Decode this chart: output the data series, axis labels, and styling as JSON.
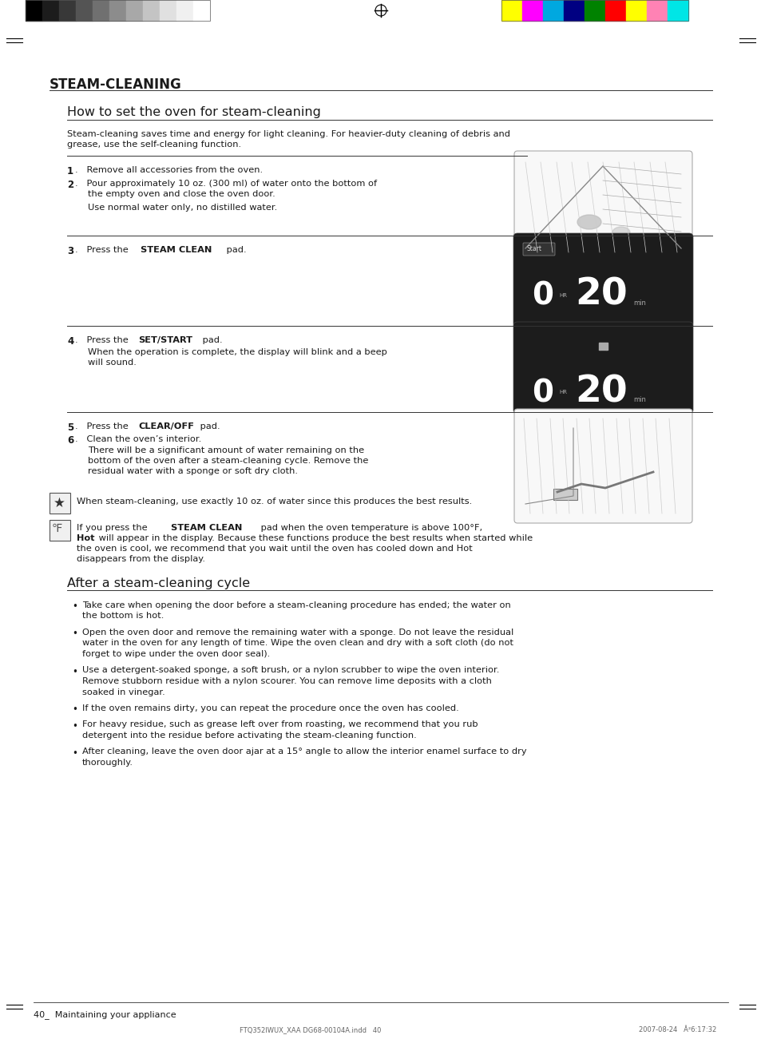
{
  "page_title": "STEAM-CLEANING",
  "section1_title": "How to set the oven for steam-cleaning",
  "intro_text1": "Steam-cleaning saves time and energy for light cleaning. For heavier-duty cleaning of debris and",
  "intro_text2": "grease, use the self-cleaning function.",
  "note1_text": "When steam-cleaning, use exactly 10 oz. of water since this produces the best results.",
  "section2_title": "After a steam-cleaning cycle",
  "bullets": [
    "Take care when opening the door before a steam-cleaning procedure has ended; the water on\nthe bottom is hot.",
    "Open the oven door and remove the remaining water with a sponge. Do not leave the residual\nwater in the oven for any length of time. Wipe the oven clean and dry with a soft cloth (do not\nforget to wipe under the oven door seal).",
    "Use a detergent-soaked sponge, a soft brush, or a nylon scrubber to wipe the oven interior.\nRemove stubborn residue with a nylon scourer. You can remove lime deposits with a cloth\nsoaked in vinegar.",
    "If the oven remains dirty, you can repeat the procedure once the oven has cooled.",
    "For heavy residue, such as grease left over from roasting, we recommend that you rub\ndetergent into the residue before activating the steam-cleaning function.",
    "After cleaning, leave the oven door ajar at a 15° angle to allow the interior enamel surface to dry\nthoroughly."
  ],
  "footer_left": "40_  Maintaining your appliance",
  "footer_file": "FTQ352IWUX_XAA DG68-00104A.indd   40",
  "footer_date": "2007-08-24   Â²6:17:32",
  "bg_color": "#ffffff",
  "colors_left": [
    "#000000",
    "#1c1c1c",
    "#383838",
    "#545454",
    "#707070",
    "#8c8c8c",
    "#a8a8a8",
    "#c4c4c4",
    "#e0e0e0",
    "#f0f0f0",
    "#ffffff"
  ],
  "colors_right": [
    "#ffff00",
    "#ff00ff",
    "#00a8e0",
    "#000082",
    "#008200",
    "#ff0000",
    "#ffff00",
    "#ff82b4",
    "#00e6e6"
  ]
}
